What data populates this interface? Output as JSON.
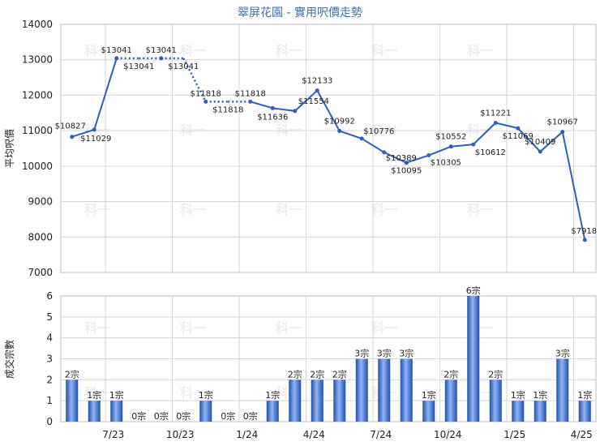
{
  "chart_data": [
    {
      "type": "line",
      "title": "翠屏花園 - 實用呎價走勢",
      "ylabel": "平均呎價",
      "ylim": [
        7000,
        14000
      ],
      "yticks": [
        7000,
        8000,
        9000,
        10000,
        11000,
        12000,
        13000,
        14000
      ],
      "x_tick_labels": [
        "7/23",
        "10/23",
        "1/24",
        "4/24",
        "7/24",
        "10/24",
        "1/25",
        "4/25"
      ],
      "series": [
        {
          "values": [
            10827,
            11029,
            13041,
            13041,
            13041,
            13041,
            11818,
            11818,
            11818,
            11636,
            11554,
            12133,
            10992,
            10776,
            10389,
            10095,
            10305,
            10552,
            10612,
            11221,
            11069,
            10409,
            10967,
            7918
          ],
          "point_labels": [
            "$10827",
            "$11029",
            "$13041",
            "$13041",
            "$13041",
            "$13041",
            "$11818",
            "$11818",
            "$11818",
            "$11636",
            "$11554",
            "$12133",
            "$10992",
            "$10776",
            "$10389",
            "$10095",
            "$10305",
            "$10552",
            "$10612",
            "$11221",
            "$11069",
            "$10409",
            "$10967",
            "$7918"
          ],
          "interpolated": [
            false,
            false,
            false,
            true,
            false,
            true,
            false,
            true,
            false,
            false,
            false,
            false,
            false,
            false,
            false,
            false,
            false,
            false,
            false,
            false,
            false,
            false,
            false,
            false
          ],
          "color": "#2c5fbf"
        }
      ],
      "grid": true,
      "watermark": "科一"
    },
    {
      "type": "bar",
      "ylabel": "成交宗數",
      "ylim": [
        0,
        6
      ],
      "yticks": [
        0,
        1,
        2,
        3,
        4,
        5,
        6
      ],
      "x_tick_labels": [
        "7/23",
        "10/23",
        "1/24",
        "4/24",
        "7/24",
        "10/24",
        "1/25",
        "4/25"
      ],
      "values": [
        2,
        1,
        1,
        0,
        0,
        0,
        1,
        0,
        0,
        1,
        2,
        2,
        2,
        3,
        3,
        3,
        1,
        2,
        6,
        2,
        1,
        1,
        3,
        1
      ],
      "bar_labels": [
        "2宗",
        "1宗",
        "1宗",
        "0宗",
        "0宗",
        "0宗",
        "1宗",
        "0宗",
        "0宗",
        "1宗",
        "2宗",
        "2宗",
        "2宗",
        "3宗",
        "3宗",
        "3宗",
        "1宗",
        "2宗",
        "6宗",
        "2宗",
        "1宗",
        "1宗",
        "3宗",
        "1宗"
      ],
      "color": "#2c5fbf",
      "grid": true,
      "watermark": "科一"
    }
  ]
}
